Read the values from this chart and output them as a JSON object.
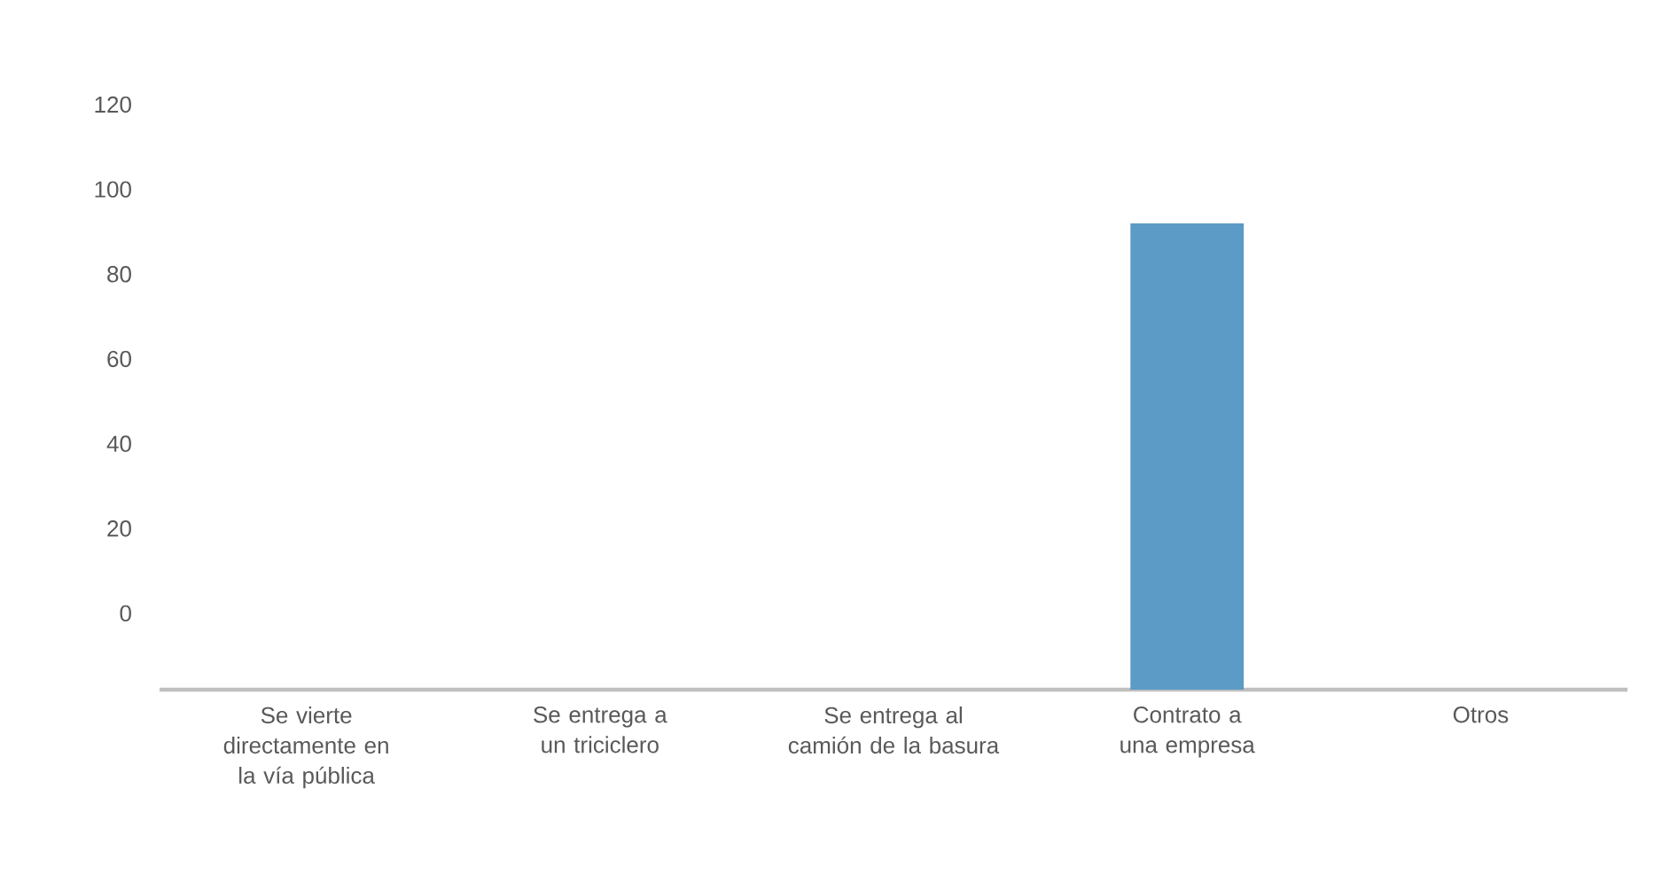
{
  "chart_data": {
    "type": "bar",
    "categories": [
      "Se vierte directamente en la vía pública",
      "Se entrega a un triciclero",
      "Se entrega al camión de la basura",
      "Contrato a una empresa",
      "Otros"
    ],
    "values": [
      null,
      null,
      null,
      110,
      null
    ],
    "base": [
      null,
      null,
      null,
      -18,
      null
    ],
    "color": "#5b9bc5",
    "ylim": [
      -18,
      120
    ],
    "yticks": [
      0,
      20,
      40,
      60,
      80,
      100,
      120
    ],
    "grid": false
  }
}
